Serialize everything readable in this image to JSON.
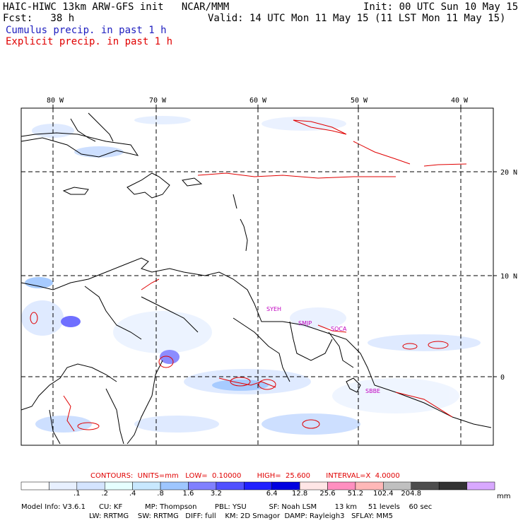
{
  "header": {
    "title_left": "HAIC-HIWC 13km ARW-GFS init   NCAR/MMM",
    "init": "Init: 00 UTC Sun 10 May 15",
    "fcst": "Fcst:   38 h",
    "valid": "Valid: 14 UTC Mon 11 May 15 (11 LST Mon 11 May 15)",
    "cumulus_legend": "Cumulus precip. in past 1 h",
    "explicit_legend": "Explicit precip. in past 1 h"
  },
  "map": {
    "lon_labels": [
      "80 W",
      "70 W",
      "60 W",
      "50 W",
      "40 W"
    ],
    "lat_labels": [
      "20 N",
      "10 N",
      "0"
    ],
    "stations": [
      "SYEH",
      "SMJP",
      "SOCA",
      "SBBE"
    ]
  },
  "contours_line": "CONTOURS:  UNITS=mm   LOW=  0.10000       HIGH=  25.600       INTERVAL=X  4.0000",
  "colorbar": {
    "colors": [
      "#ffffff",
      "#e8f0ff",
      "#d4e4ff",
      "#e6ffff",
      "#c8e8ff",
      "#9ec6ff",
      "#8080ff",
      "#5050ff",
      "#2020ff",
      "#0000e0",
      "#ffe6e6",
      "#ff8fc0",
      "#ffb8b8",
      "#c0c0c0",
      "#4d4d4d",
      "#333333",
      "#d8a8ff"
    ],
    "labels": [
      ".1",
      ".2",
      ".4",
      ".8",
      "1.6",
      "3.2",
      "6.4",
      "12.8",
      "25.6",
      "51.2",
      "102.4",
      "204.8"
    ],
    "unit": "mm"
  },
  "footer": {
    "line1": "Model Info: V3.6.1      CU: KF          MP: Thompson        PBL: YSU          SF: Noah LSM        13 km     51 levels    60 sec",
    "line2": "LW: RRTMG    SW: RRTMG   DIFF: full    KM: 2D Smagor  DAMP: Rayleigh3   SFLAY: MM5"
  },
  "colors": {
    "cumulus": "#2020c0",
    "explicit": "#e00000",
    "station": "#c000c0"
  }
}
